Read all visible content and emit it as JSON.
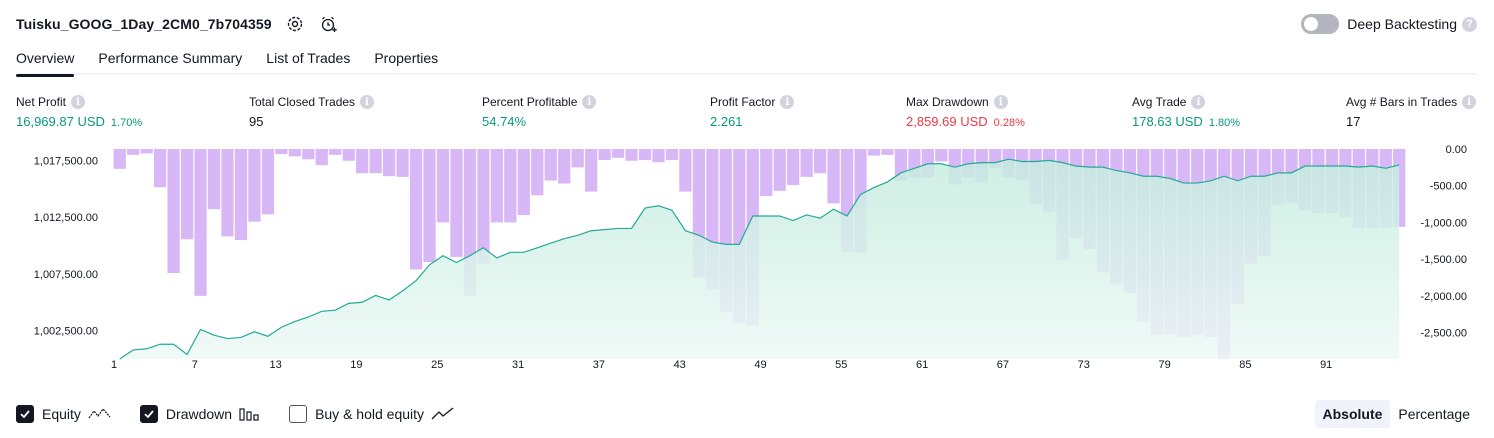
{
  "header": {
    "strategy_name": "Tuisku_GOOG_1Day_2CM0_7b704359",
    "settings_icon": "gear-icon",
    "alert_icon": "alarm-clock-plus-icon",
    "deep_backtesting_label": "Deep Backtesting",
    "deep_backtesting_enabled": false
  },
  "tabs": [
    {
      "label": "Overview",
      "active": true
    },
    {
      "label": "Performance Summary",
      "active": false
    },
    {
      "label": "List of Trades",
      "active": false
    },
    {
      "label": "Properties",
      "active": false
    }
  ],
  "metrics": {
    "net_profit": {
      "label": "Net Profit",
      "value": "16,969.87 USD",
      "sub": "1.70%"
    },
    "total_closed_trades": {
      "label": "Total Closed Trades",
      "value": "95"
    },
    "percent_profitable": {
      "label": "Percent Profitable",
      "value": "54.74%"
    },
    "profit_factor": {
      "label": "Profit Factor",
      "value": "2.261"
    },
    "max_drawdown": {
      "label": "Max Drawdown",
      "value": "2,859.69 USD",
      "sub": "0.28%"
    },
    "avg_trade": {
      "label": "Avg Trade",
      "value": "178.63 USD",
      "sub": "1.80%"
    },
    "avg_bars": {
      "label": "Avg # Bars in Trades",
      "value": "17"
    }
  },
  "colors": {
    "equity_line": "#22ab94",
    "equity_fill": "#cfeee6",
    "drawdown_bar": "#d8b7f7",
    "overlap_bar": "#b3b6ea",
    "positive": "#089981",
    "negative": "#f23645"
  },
  "chart_data": {
    "type": "area",
    "x_ticks": [
      "1",
      "7",
      "13",
      "19",
      "25",
      "31",
      "37",
      "43",
      "49",
      "55",
      "61",
      "67",
      "73",
      "79",
      "85",
      "91"
    ],
    "left_ticks": [
      "1,017,500.00",
      "1,012,500.00",
      "1,007,500.00",
      "1,002,500.00"
    ],
    "right_ticks": [
      "0.00",
      "-500.00",
      "-1,000.00",
      "-1,500.00",
      "-2,000.00",
      "-2,500.00"
    ],
    "equity_ylim": [
      1000000,
      1018500
    ],
    "drawdown_ylim": [
      -2860,
      0
    ],
    "series": [
      {
        "name": "Equity",
        "x": [
          1,
          2,
          3,
          4,
          5,
          6,
          7,
          8,
          9,
          10,
          11,
          12,
          13,
          14,
          15,
          16,
          17,
          18,
          19,
          20,
          21,
          22,
          23,
          24,
          25,
          26,
          27,
          28,
          29,
          30,
          31,
          32,
          33,
          34,
          35,
          36,
          37,
          38,
          39,
          40,
          41,
          42,
          43,
          44,
          45,
          46,
          47,
          48,
          49,
          50,
          51,
          52,
          53,
          54,
          55,
          56,
          57,
          58,
          59,
          60,
          61,
          62,
          63,
          64,
          65,
          66,
          67,
          68,
          69,
          70,
          71,
          72,
          73,
          74,
          75,
          76,
          77,
          78,
          79,
          80,
          81,
          82,
          83,
          84,
          85,
          86,
          87,
          88,
          89,
          90,
          91,
          92,
          93,
          94,
          95,
          96
        ],
        "values": [
          1000000,
          1000800,
          1000900,
          1001300,
          1001300,
          1000400,
          1002600,
          1002100,
          1001800,
          1001900,
          1002400,
          1002000,
          1002800,
          1003300,
          1003700,
          1004200,
          1004300,
          1004900,
          1005000,
          1005600,
          1005200,
          1006000,
          1006900,
          1008300,
          1009100,
          1008500,
          1009100,
          1009800,
          1008900,
          1009400,
          1009400,
          1009800,
          1010200,
          1010600,
          1010900,
          1011300,
          1011400,
          1011500,
          1011500,
          1013300,
          1013500,
          1013100,
          1011300,
          1010900,
          1010300,
          1010100,
          1010100,
          1012600,
          1012600,
          1012600,
          1012200,
          1012700,
          1012400,
          1013200,
          1012600,
          1014500,
          1015100,
          1015600,
          1016400,
          1016800,
          1017200,
          1017200,
          1016900,
          1017200,
          1017300,
          1017300,
          1017600,
          1017400,
          1017400,
          1017500,
          1017300,
          1017000,
          1016900,
          1016900,
          1016600,
          1016400,
          1016100,
          1016100,
          1015900,
          1015500,
          1015500,
          1015700,
          1016100,
          1015700,
          1016100,
          1016100,
          1016400,
          1016400,
          1017000,
          1017000,
          1017000,
          1017000,
          1016900,
          1017000,
          1016800,
          1017100
        ]
      },
      {
        "name": "Drawdown",
        "x": [
          1,
          2,
          3,
          4,
          5,
          6,
          7,
          8,
          9,
          10,
          11,
          12,
          13,
          14,
          15,
          16,
          17,
          18,
          19,
          20,
          21,
          22,
          23,
          24,
          25,
          26,
          27,
          28,
          29,
          30,
          31,
          32,
          33,
          34,
          35,
          36,
          37,
          38,
          39,
          40,
          41,
          42,
          43,
          44,
          45,
          46,
          47,
          48,
          49,
          50,
          51,
          52,
          53,
          54,
          55,
          56,
          57,
          58,
          59,
          60,
          61,
          62,
          63,
          64,
          65,
          66,
          67,
          68,
          69,
          70,
          71,
          72,
          73,
          74,
          75,
          76,
          77,
          78,
          79,
          80,
          81,
          82,
          83,
          84,
          85,
          86,
          87,
          88,
          89,
          90,
          91,
          92,
          93,
          94,
          95,
          96
        ],
        "values": [
          -270,
          -80,
          -60,
          -520,
          -1690,
          -1230,
          -2000,
          -820,
          -1190,
          -1240,
          -990,
          -890,
          -70,
          -100,
          -140,
          -220,
          -80,
          -160,
          -330,
          -330,
          -370,
          -380,
          -1640,
          -1540,
          -1000,
          -1470,
          -2000,
          -1560,
          -1000,
          -1000,
          -900,
          -630,
          -430,
          -470,
          -250,
          -580,
          -150,
          -120,
          -160,
          -150,
          -180,
          -150,
          -580,
          -1750,
          -1910,
          -2220,
          -2360,
          -2400,
          -640,
          -570,
          -490,
          -380,
          -330,
          -740,
          -1400,
          -1410,
          -90,
          -80,
          -430,
          -390,
          -390,
          -170,
          -480,
          -390,
          -460,
          -260,
          -390,
          -420,
          -750,
          -860,
          -1510,
          -1210,
          -1360,
          -1680,
          -1840,
          -1960,
          -2350,
          -2530,
          -2520,
          -2560,
          -2530,
          -2560,
          -2860,
          -2110,
          -1560,
          -1460,
          -760,
          -740,
          -840,
          -870,
          -870,
          -930,
          -1080,
          -1080,
          -1070,
          -1060
        ]
      }
    ]
  },
  "legend": [
    {
      "label": "Equity",
      "checked": true,
      "icon": "line-chart-icon"
    },
    {
      "label": "Drawdown",
      "checked": true,
      "icon": "bar-chart-icon"
    },
    {
      "label": "Buy & hold equity",
      "checked": false,
      "icon": "trend-line-icon"
    }
  ],
  "view_mode": {
    "absolute_label": "Absolute",
    "percentage_label": "Percentage",
    "selected": "Absolute"
  }
}
